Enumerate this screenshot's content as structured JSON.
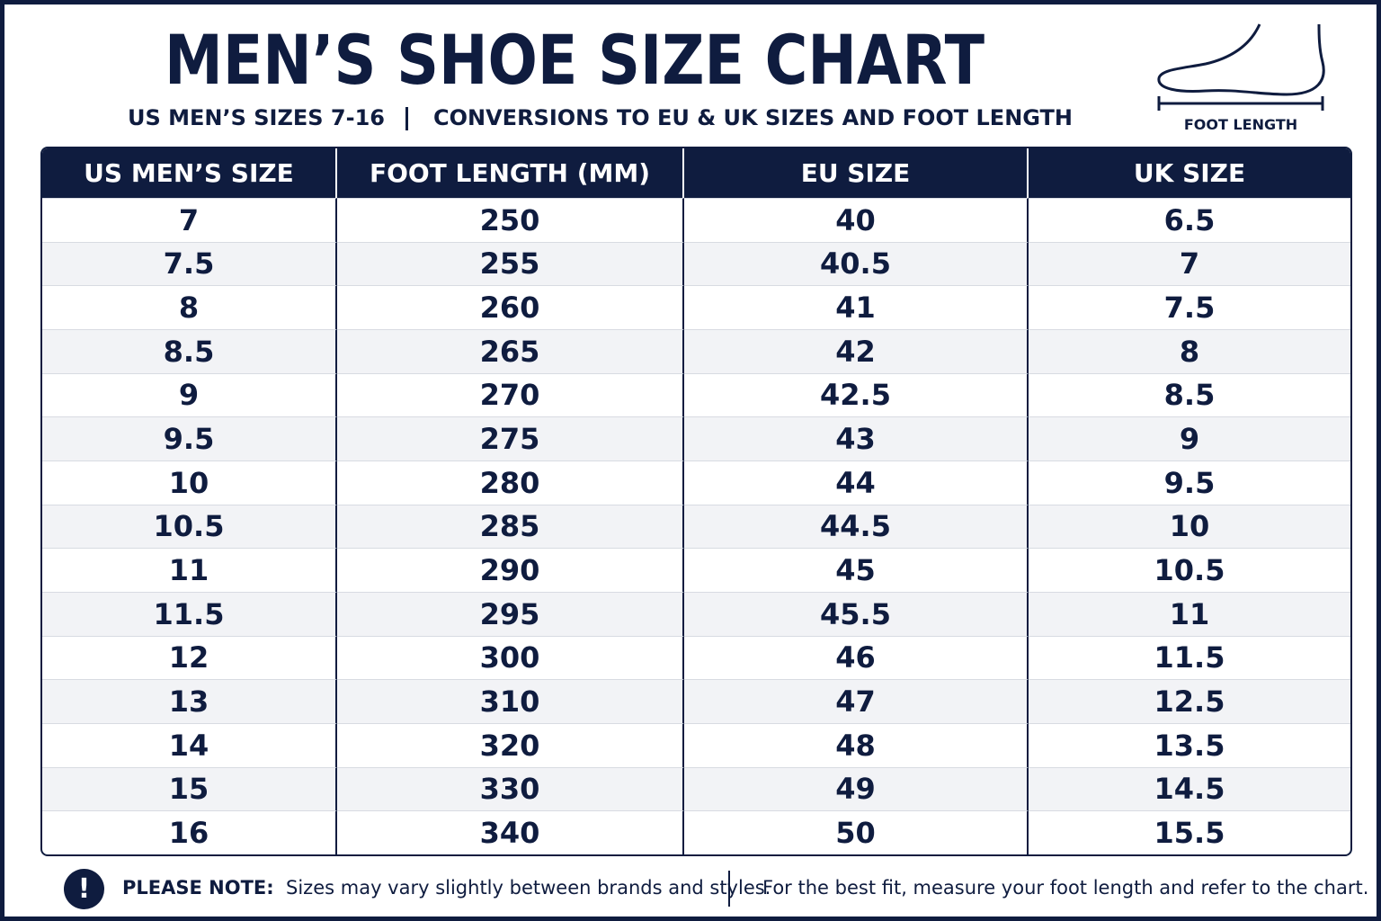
{
  "header": {
    "title": "MEN’S SHOE SIZE CHART",
    "subtitle_left": "US MEN’S SIZES 7-16",
    "subtitle_right": "CONVERSIONS TO EU & UK SIZES AND FOOT LENGTH",
    "icon_label": "FOOT LENGTH"
  },
  "table": {
    "columns": [
      "US MEN’S SIZE",
      "FOOT LENGTH (MM)",
      "EU SIZE",
      "UK SIZE"
    ],
    "rows": [
      [
        "7",
        "250",
        "40",
        "6.5"
      ],
      [
        "7.5",
        "255",
        "40.5",
        "7"
      ],
      [
        "8",
        "260",
        "41",
        "7.5"
      ],
      [
        "8.5",
        "265",
        "42",
        "8"
      ],
      [
        "9",
        "270",
        "42.5",
        "8.5"
      ],
      [
        "9.5",
        "275",
        "43",
        "9"
      ],
      [
        "10",
        "280",
        "44",
        "9.5"
      ],
      [
        "10.5",
        "285",
        "44.5",
        "10"
      ],
      [
        "11",
        "290",
        "45",
        "10.5"
      ],
      [
        "11.5",
        "295",
        "45.5",
        "11"
      ],
      [
        "12",
        "300",
        "46",
        "11.5"
      ],
      [
        "13",
        "310",
        "47",
        "12.5"
      ],
      [
        "14",
        "320",
        "48",
        "13.5"
      ],
      [
        "15",
        "330",
        "49",
        "14.5"
      ],
      [
        "16",
        "340",
        "50",
        "15.5"
      ]
    ]
  },
  "note": {
    "label": "PLEASE NOTE:",
    "text_left": "Sizes may vary slightly between brands and styles.",
    "text_right": "For the best fit, measure your foot length and refer to the chart."
  }
}
